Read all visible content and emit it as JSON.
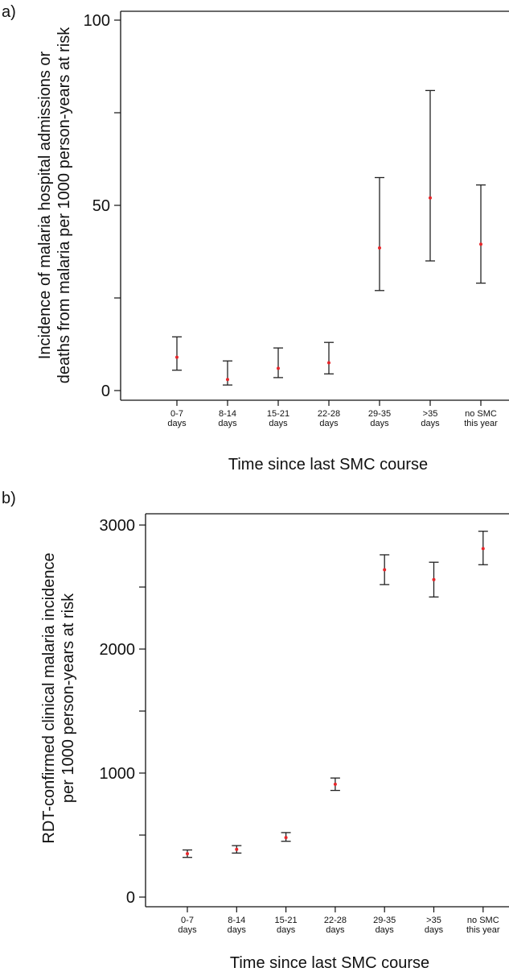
{
  "chart_data": [
    {
      "panel_label": "a)",
      "type": "scatter",
      "ylabel_lines": [
        "Incidence of malaria hospital admissions or",
        "deaths from malaria per 1000 person-years at risk"
      ],
      "xlabel": "Time since last SMC course",
      "categories": [
        [
          "0-7",
          "days"
        ],
        [
          "8-14",
          "days"
        ],
        [
          "15-21",
          "days"
        ],
        [
          "22-28",
          "days"
        ],
        [
          "29-35",
          "days"
        ],
        [
          ">35",
          "days"
        ],
        [
          "no SMC",
          "this year"
        ]
      ],
      "values": [
        9,
        3,
        6,
        7.5,
        38.5,
        52,
        39.5
      ],
      "ci_lower": [
        5.5,
        1.5,
        3.5,
        4.5,
        27,
        35,
        29
      ],
      "ci_upper": [
        14.5,
        8,
        11.5,
        13,
        57.5,
        81,
        55.5
      ],
      "ylim": [
        0,
        100
      ],
      "yticks_major": [
        0,
        50,
        100
      ],
      "yticks_minor": [
        25,
        75
      ],
      "point_color": "#e8262a",
      "errorbar_color": "#222222",
      "grid": false
    },
    {
      "panel_label": "b)",
      "type": "scatter",
      "ylabel_lines": [
        "RDT-confirmed clinical malaria incidence",
        "per 1000 person-years at risk"
      ],
      "xlabel": "Time since last SMC course",
      "categories": [
        [
          "0-7",
          "days"
        ],
        [
          "8-14",
          "days"
        ],
        [
          "15-21",
          "days"
        ],
        [
          "22-28",
          "days"
        ],
        [
          "29-35",
          "days"
        ],
        [
          ">35",
          "days"
        ],
        [
          "no SMC",
          "this year"
        ]
      ],
      "values": [
        350,
        385,
        480,
        910,
        2640,
        2560,
        2810
      ],
      "ci_lower": [
        320,
        355,
        450,
        860,
        2520,
        2420,
        2680
      ],
      "ci_upper": [
        380,
        415,
        520,
        960,
        2760,
        2700,
        2950
      ],
      "ylim": [
        0,
        3000
      ],
      "yticks_major": [
        0,
        1000,
        2000,
        3000
      ],
      "yticks_minor": [
        500,
        1500,
        2500
      ],
      "point_color": "#e8262a",
      "errorbar_color": "#222222",
      "grid": false
    }
  ]
}
